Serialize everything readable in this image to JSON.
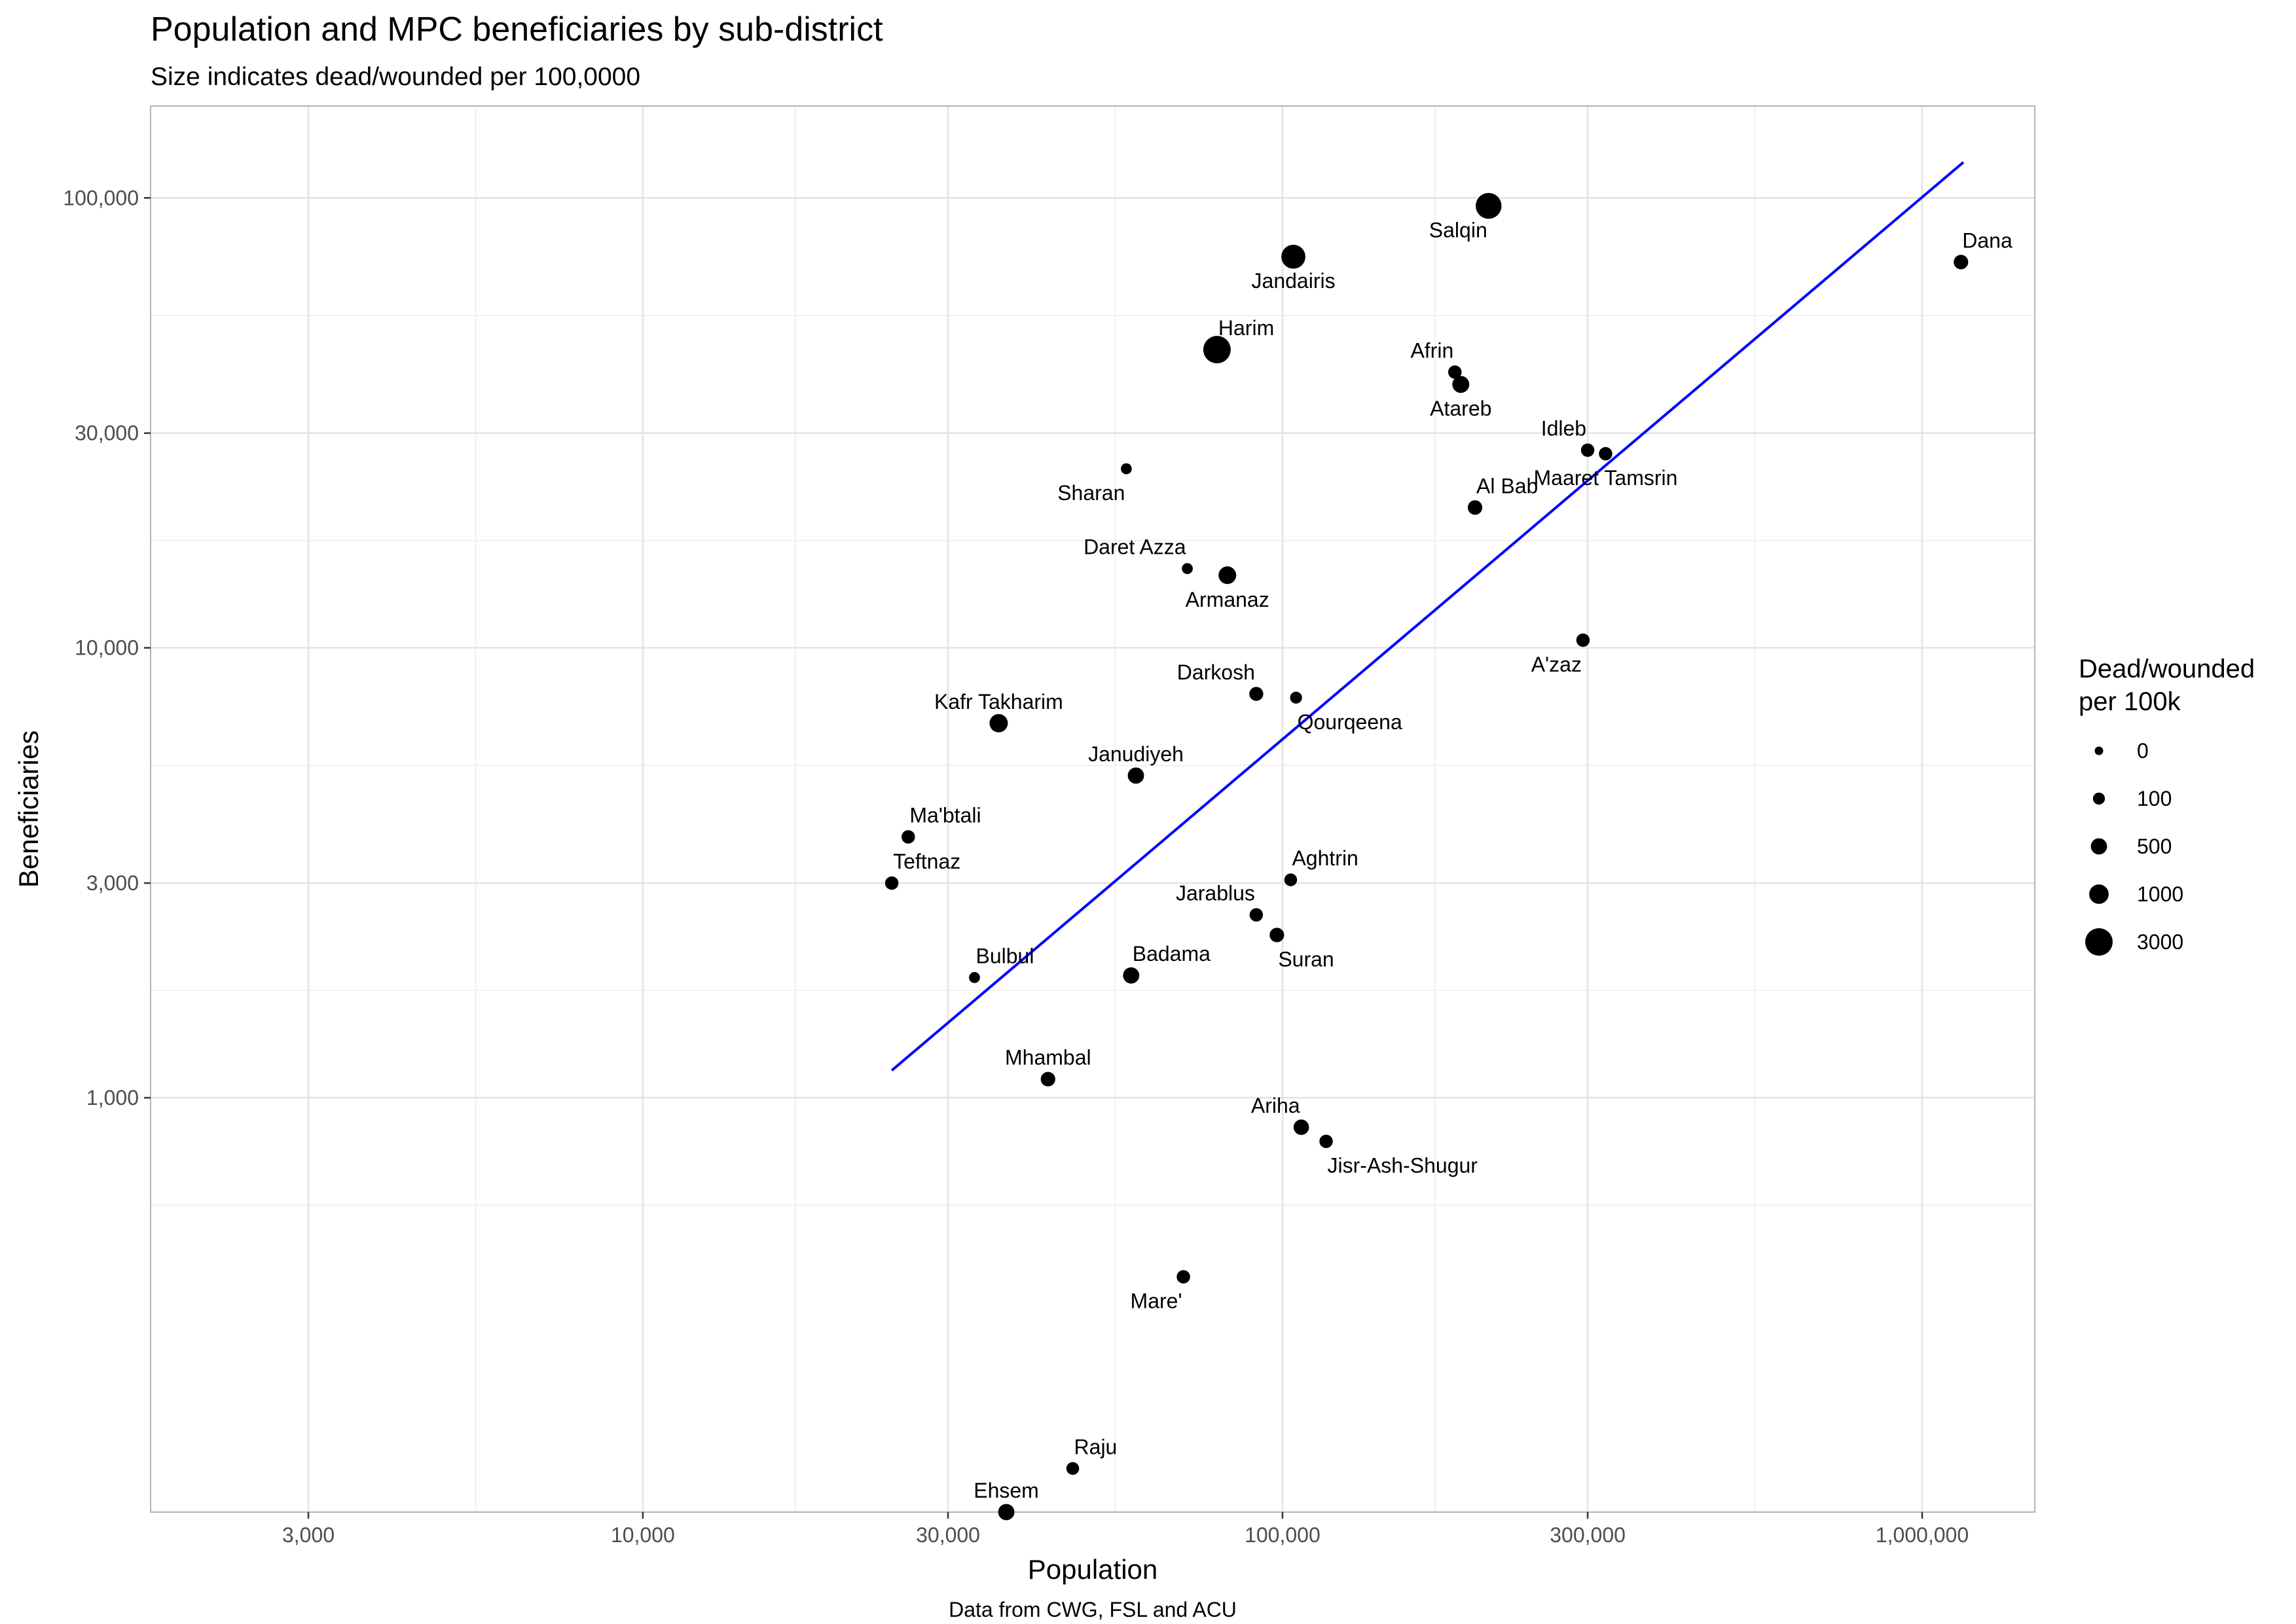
{
  "chart_data": {
    "type": "scatter",
    "title": "Population and MPC beneficiaries by sub-district",
    "subtitle": "Size indicates dead/wounded per 100,0000",
    "xlabel": "Population",
    "ylabel": "Beneficiaries",
    "caption": "Data from CWG, FSL and ACU",
    "x_scale": "log10",
    "y_scale": "log10",
    "xlim": [
      1700,
      1500000
    ],
    "ylim": [
      120,
      160000
    ],
    "x_ticks": [
      {
        "value": 3000,
        "label": "3,000"
      },
      {
        "value": 10000,
        "label": "10,000"
      },
      {
        "value": 30000,
        "label": "30,000"
      },
      {
        "value": 100000,
        "label": "100,000"
      },
      {
        "value": 300000,
        "label": "300,000"
      },
      {
        "value": 1000000,
        "label": "1,000,000"
      }
    ],
    "y_ticks": [
      {
        "value": 1000,
        "label": "1,000"
      },
      {
        "value": 3000,
        "label": "3,000"
      },
      {
        "value": 10000,
        "label": "10,000"
      },
      {
        "value": 30000,
        "label": "30,000"
      },
      {
        "value": 100000,
        "label": "100,000"
      }
    ],
    "grid": true,
    "legend": {
      "title_lines": [
        "Dead/wounded",
        "per 100k"
      ],
      "position": "right",
      "entries": [
        {
          "label": "0",
          "value": 0
        },
        {
          "label": "100",
          "value": 100
        },
        {
          "label": "500",
          "value": 500
        },
        {
          "label": "1000",
          "value": 1000
        },
        {
          "label": "3000",
          "value": 3000
        }
      ]
    },
    "trend_line": {
      "color": "#0000ff",
      "x": [
        24500,
        1160000
      ],
      "y": [
        1150,
        120000
      ]
    },
    "points": [
      {
        "name": "Dana",
        "x": 1150000,
        "y": 72000,
        "size": 300,
        "label_pos": "above-right"
      },
      {
        "name": "Salqin",
        "x": 210000,
        "y": 96000,
        "size": 2500,
        "label_pos": "below-left"
      },
      {
        "name": "Jandairis",
        "x": 104000,
        "y": 74000,
        "size": 2000,
        "label_pos": "below"
      },
      {
        "name": "Harim",
        "x": 79000,
        "y": 46000,
        "size": 3000,
        "label_pos": "above-right"
      },
      {
        "name": "Afrin",
        "x": 186000,
        "y": 41000,
        "size": 200,
        "label_pos": "above-left"
      },
      {
        "name": "Atareb",
        "x": 190000,
        "y": 38500,
        "size": 600,
        "label_pos": "below"
      },
      {
        "name": "Idleb",
        "x": 300000,
        "y": 27500,
        "size": 200,
        "label_pos": "above-left"
      },
      {
        "name": "Maaret Tamsrin",
        "x": 320000,
        "y": 27000,
        "size": 200,
        "label_pos": "below"
      },
      {
        "name": "Sharan",
        "x": 57000,
        "y": 25000,
        "size": 50,
        "label_pos": "below-left"
      },
      {
        "name": "Al Bab",
        "x": 200000,
        "y": 20500,
        "size": 300,
        "label_pos": "above-right"
      },
      {
        "name": "Daret Azza",
        "x": 71000,
        "y": 15000,
        "size": 50,
        "label_pos": "above-left"
      },
      {
        "name": "Armanaz",
        "x": 82000,
        "y": 14500,
        "size": 700,
        "label_pos": "below"
      },
      {
        "name": "A'zaz",
        "x": 295000,
        "y": 10400,
        "size": 200,
        "label_pos": "below-left"
      },
      {
        "name": "Darkosh",
        "x": 91000,
        "y": 7900,
        "size": 250,
        "label_pos": "above-left"
      },
      {
        "name": "Qourqeena",
        "x": 105000,
        "y": 7750,
        "size": 100,
        "label_pos": "below-right"
      },
      {
        "name": "Kafr Takharim",
        "x": 36000,
        "y": 6800,
        "size": 800,
        "label_pos": "above"
      },
      {
        "name": "Janudiyeh",
        "x": 59000,
        "y": 5200,
        "size": 500,
        "label_pos": "above"
      },
      {
        "name": "Ma'btali",
        "x": 26000,
        "y": 3800,
        "size": 200,
        "label_pos": "above-right"
      },
      {
        "name": "Aghtrin",
        "x": 103000,
        "y": 3050,
        "size": 150,
        "label_pos": "above-right"
      },
      {
        "name": "Teftnaz",
        "x": 24500,
        "y": 3000,
        "size": 200,
        "label_pos": "above-right"
      },
      {
        "name": "Jarablus",
        "x": 91000,
        "y": 2550,
        "size": 200,
        "label_pos": "above-left"
      },
      {
        "name": "Suran",
        "x": 98000,
        "y": 2300,
        "size": 300,
        "label_pos": "below-right"
      },
      {
        "name": "Bulbul",
        "x": 33000,
        "y": 1850,
        "size": 50,
        "label_pos": "above-right"
      },
      {
        "name": "Badama",
        "x": 58000,
        "y": 1870,
        "size": 500,
        "label_pos": "above-right"
      },
      {
        "name": "Mhambal",
        "x": 43000,
        "y": 1100,
        "size": 300,
        "label_pos": "above"
      },
      {
        "name": "Ariha",
        "x": 107000,
        "y": 860,
        "size": 400,
        "label_pos": "above-left"
      },
      {
        "name": "Jisr-Ash-Shugur",
        "x": 117000,
        "y": 800,
        "size": 200,
        "label_pos": "below-right"
      },
      {
        "name": "Mare'",
        "x": 70000,
        "y": 400,
        "size": 200,
        "label_pos": "below-left"
      },
      {
        "name": "Raju",
        "x": 47000,
        "y": 150,
        "size": 150,
        "label_pos": "above-right"
      },
      {
        "name": "Ehsem",
        "x": 37000,
        "y": 120,
        "size": 500,
        "label_pos": "above"
      }
    ]
  }
}
